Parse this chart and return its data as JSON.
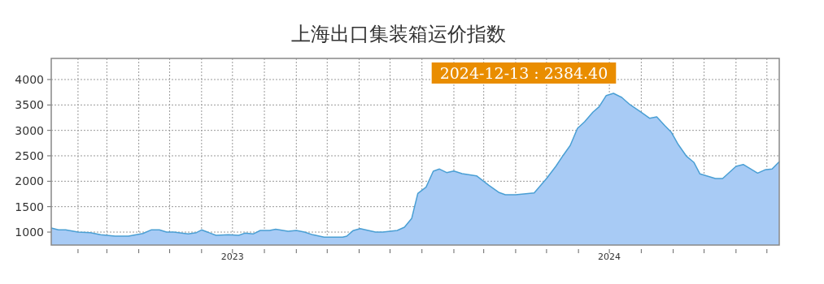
{
  "chart_data": {
    "type": "area",
    "title": "上海出口集装箱运价指数",
    "x": [
      "2023-01-06",
      "2023-01-13",
      "2023-01-20",
      "2023-02-01",
      "2023-02-13",
      "2023-02-23",
      "2023-03-09",
      "2023-03-22",
      "2023-04-05",
      "2023-04-13",
      "2023-04-21",
      "2023-04-28",
      "2023-05-05",
      "2023-05-19",
      "2023-05-27",
      "2023-06-01",
      "2023-06-08",
      "2023-06-15",
      "2023-06-27",
      "2023-07-07",
      "2023-07-13",
      "2023-07-21",
      "2023-07-28",
      "2023-08-06",
      "2023-08-12",
      "2023-08-24",
      "2023-09-01",
      "2023-09-09",
      "2023-09-17",
      "2023-09-28",
      "2023-10-16",
      "2023-10-20",
      "2023-10-26",
      "2023-11-02",
      "2023-11-09",
      "2023-11-17",
      "2023-11-24",
      "2023-12-08",
      "2023-12-15",
      "2023-12-22",
      "2023-12-28",
      "2024-01-05",
      "2024-01-12",
      "2024-01-18",
      "2024-01-25",
      "2024-02-01",
      "2024-02-09",
      "2024-02-23",
      "2024-03-06",
      "2024-03-16",
      "2024-03-22",
      "2024-04-01",
      "2024-04-19",
      "2024-05-01",
      "2024-05-10",
      "2024-05-17",
      "2024-05-24",
      "2024-05-31",
      "2024-06-07",
      "2024-06-15",
      "2024-06-21",
      "2024-06-28",
      "2024-07-05",
      "2024-07-13",
      "2024-07-21",
      "2024-08-01",
      "2024-08-09",
      "2024-08-16",
      "2024-08-24",
      "2024-08-30",
      "2024-09-06",
      "2024-09-14",
      "2024-09-21",
      "2024-09-27",
      "2024-10-12",
      "2024-10-19",
      "2024-11-01",
      "2024-11-08",
      "2024-11-22",
      "2024-11-29",
      "2024-12-06",
      "2024-12-13"
    ],
    "series": [
      {
        "color": "#a8cbf5",
        "values": [
          1080,
          1043,
          1043,
          1000,
          990,
          947,
          920,
          920,
          973,
          1043,
          1043,
          1000,
          1000,
          963,
          990,
          1043,
          990,
          936,
          947,
          936,
          979,
          963,
          1032,
          1032,
          1055,
          1016,
          1032,
          1000,
          947,
          899,
          899,
          920,
          1027,
          1069,
          1037,
          1000,
          1000,
          1032,
          1096,
          1266,
          1761,
          1883,
          2197,
          2240,
          2170,
          2202,
          2149,
          2106,
          1921,
          1777,
          1734,
          1734,
          1771,
          2053,
          2293,
          2505,
          2703,
          3038,
          3171,
          3357,
          3463,
          3686,
          3729,
          3649,
          3506,
          3357,
          3239,
          3266,
          3091,
          2968,
          2719,
          2489,
          2373,
          2144,
          2053,
          2053,
          2293,
          2330,
          2160,
          2224,
          2240,
          2384.4
        ]
      }
    ],
    "xlim": [
      "2023-01-06",
      "2024-12-13"
    ],
    "xticks": [
      {
        "value": "2023-02-01",
        "label": null
      },
      {
        "value": "2023-03-01",
        "label": null
      },
      {
        "value": "2023-04-01",
        "label": null
      },
      {
        "value": "2023-05-01",
        "label": null
      },
      {
        "value": "2023-06-01",
        "label": null
      },
      {
        "value": "2023-07-01",
        "label": "2023"
      },
      {
        "value": "2023-08-01",
        "label": null
      },
      {
        "value": "2023-09-01",
        "label": null
      },
      {
        "value": "2023-10-01",
        "label": null
      },
      {
        "value": "2023-11-01",
        "label": null
      },
      {
        "value": "2023-12-01",
        "label": null
      },
      {
        "value": "2024-01-01",
        "label": null
      },
      {
        "value": "2024-02-01",
        "label": null
      },
      {
        "value": "2024-03-01",
        "label": null
      },
      {
        "value": "2024-04-01",
        "label": null
      },
      {
        "value": "2024-05-01",
        "label": null
      },
      {
        "value": "2024-06-01",
        "label": null
      },
      {
        "value": "2024-07-01",
        "label": "2024"
      },
      {
        "value": "2024-08-01",
        "label": null
      },
      {
        "value": "2024-09-01",
        "label": null
      },
      {
        "value": "2024-10-01",
        "label": null
      },
      {
        "value": "2024-11-01",
        "label": null
      },
      {
        "value": "2024-12-01",
        "label": null
      }
    ],
    "ylim": [
      745,
      4415
    ],
    "yticks": [
      1000,
      1500,
      2000,
      2500,
      3000,
      3500,
      4000
    ],
    "grid": true,
    "annotations": [
      "2024-12-13 : 2384.40"
    ]
  }
}
